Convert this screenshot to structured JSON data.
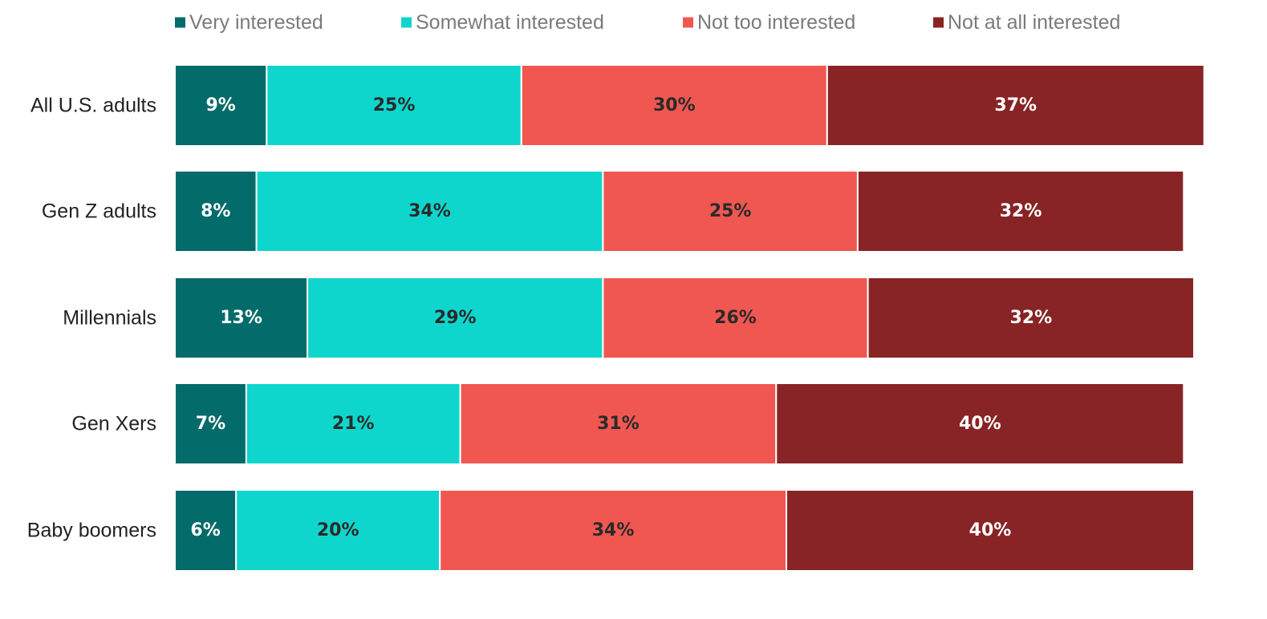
{
  "chart_data": {
    "type": "bar",
    "orientation": "horizontal",
    "stacked": true,
    "categories": [
      "All U.S. adults",
      "Gen Z adults",
      "Millennials",
      "Gen Xers",
      "Baby boomers"
    ],
    "series": [
      {
        "name": "Very interested",
        "color": "#036b69",
        "label_color": "#ffffff",
        "values": [
          9,
          8,
          13,
          7,
          6
        ],
        "labels": [
          "9%",
          "8%",
          "13%",
          "7%",
          "6%"
        ]
      },
      {
        "name": "Somewhat interested",
        "color": "#0fd6cc",
        "label_color": "#2a2a2a",
        "values": [
          25,
          34,
          29,
          21,
          20
        ],
        "labels": [
          "25%",
          "34%",
          "29%",
          "21%",
          "20%"
        ]
      },
      {
        "name": "Not too interested",
        "color": "#f05751",
        "label_color": "#2a2a2a",
        "values": [
          30,
          25,
          26,
          31,
          34
        ],
        "labels": [
          "30%",
          "25%",
          "26%",
          "31%",
          "34%"
        ]
      },
      {
        "name": "Not at all interested",
        "color": "#882425",
        "label_color": "#ffffff",
        "values": [
          37,
          32,
          32,
          40,
          40
        ],
        "labels": [
          "37%",
          "32%",
          "32%",
          "40%",
          "40%"
        ]
      }
    ],
    "legend_position": "top",
    "grid": false,
    "xlim": [
      0,
      100
    ]
  }
}
